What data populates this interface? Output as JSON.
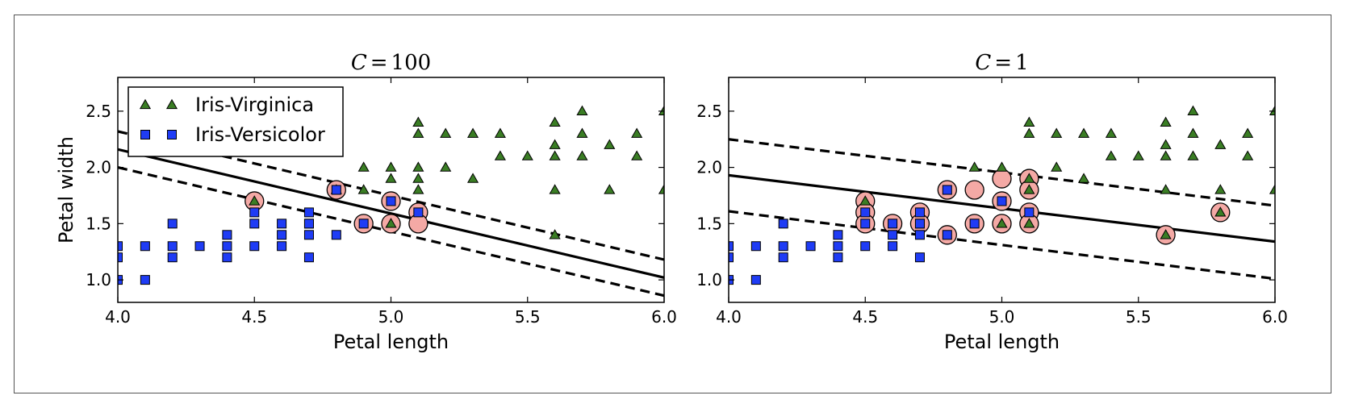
{
  "colors": {
    "virginica": "#3a7d24",
    "versicolor": "#1f3cf5",
    "support_vector": "#f4a9a5",
    "line": "#000000"
  },
  "chart_data": [
    {
      "type": "scatter",
      "title": "C = 100",
      "title_parts": {
        "var": "C",
        "eq": "=",
        "num": "100"
      },
      "xlabel": "Petal length",
      "ylabel": "Petal width",
      "xlim": [
        4.0,
        6.0
      ],
      "ylim": [
        0.8,
        2.8
      ],
      "xticks": [
        "4.0",
        "4.5",
        "5.0",
        "5.5",
        "6.0"
      ],
      "yticks": [
        "1.0",
        "1.5",
        "2.0",
        "2.5"
      ],
      "legend": {
        "position": "upper-left",
        "entries": [
          "Iris-Virginica",
          "Iris-Versicolor"
        ]
      },
      "series": [
        {
          "name": "Iris-Virginica",
          "marker": "triangle",
          "x": [
            4.5,
            4.8,
            4.9,
            4.9,
            5.0,
            5.0,
            5.0,
            5.1,
            5.1,
            5.1,
            5.1,
            5.1,
            5.2,
            5.2,
            5.3,
            5.3,
            5.4,
            5.4,
            5.5,
            5.6,
            5.6,
            5.6,
            5.6,
            5.6,
            5.7,
            5.7,
            5.7,
            5.8,
            5.8,
            5.9,
            5.9,
            6.0,
            6.0
          ],
          "y": [
            1.7,
            1.8,
            2.0,
            1.8,
            2.0,
            1.9,
            1.5,
            2.4,
            2.3,
            2.0,
            1.9,
            1.8,
            2.3,
            2.0,
            2.3,
            1.9,
            2.3,
            2.1,
            2.1,
            2.4,
            2.2,
            2.1,
            1.8,
            1.4,
            2.5,
            2.3,
            2.1,
            2.2,
            1.8,
            2.3,
            2.1,
            2.5,
            1.8
          ]
        },
        {
          "name": "Iris-Versicolor",
          "marker": "square",
          "x": [
            4.0,
            4.0,
            4.0,
            4.1,
            4.1,
            4.2,
            4.2,
            4.2,
            4.3,
            4.4,
            4.4,
            4.4,
            4.5,
            4.5,
            4.5,
            4.6,
            4.6,
            4.6,
            4.7,
            4.7,
            4.7,
            4.7,
            4.7,
            4.8,
            4.8,
            4.9,
            5.0,
            5.1
          ],
          "y": [
            1.3,
            1.2,
            1.0,
            1.3,
            1.0,
            1.5,
            1.3,
            1.2,
            1.3,
            1.4,
            1.3,
            1.2,
            1.6,
            1.5,
            1.3,
            1.5,
            1.4,
            1.3,
            1.6,
            1.5,
            1.4,
            1.2,
            1.5,
            1.8,
            1.4,
            1.5,
            1.7,
            1.6
          ]
        }
      ],
      "support_vectors": {
        "x": [
          4.5,
          4.8,
          4.9,
          5.0,
          5.0,
          5.1,
          5.1
        ],
        "y": [
          1.7,
          1.8,
          1.5,
          1.7,
          1.5,
          1.6,
          1.5
        ]
      },
      "lines": [
        {
          "style": "solid",
          "x": [
            4.0,
            6.0
          ],
          "y": [
            2.16,
            1.02
          ]
        },
        {
          "style": "dashed",
          "x": [
            4.0,
            6.0
          ],
          "y": [
            2.32,
            1.18
          ]
        },
        {
          "style": "dashed",
          "x": [
            4.0,
            6.0
          ],
          "y": [
            2.0,
            0.86
          ]
        }
      ],
      "grid": false
    },
    {
      "type": "scatter",
      "title": "C = 1",
      "title_parts": {
        "var": "C",
        "eq": "=",
        "num": "1"
      },
      "xlabel": "Petal length",
      "ylabel": "",
      "xlim": [
        4.0,
        6.0
      ],
      "ylim": [
        0.8,
        2.8
      ],
      "xticks": [
        "4.0",
        "4.5",
        "5.0",
        "5.5",
        "6.0"
      ],
      "yticks": [
        "1.0",
        "1.5",
        "2.0",
        "2.5"
      ],
      "series": [
        {
          "name": "Iris-Virginica",
          "marker": "triangle",
          "x": [
            4.5,
            4.9,
            5.0,
            5.0,
            5.1,
            5.1,
            5.1,
            5.1,
            5.1,
            5.2,
            5.2,
            5.3,
            5.3,
            5.4,
            5.4,
            5.5,
            5.6,
            5.6,
            5.6,
            5.6,
            5.6,
            5.7,
            5.7,
            5.7,
            5.8,
            5.8,
            5.8,
            5.9,
            5.9,
            6.0,
            6.0
          ],
          "y": [
            1.7,
            2.0,
            2.0,
            1.5,
            2.4,
            2.3,
            1.9,
            1.8,
            1.5,
            2.3,
            2.0,
            2.3,
            1.9,
            2.3,
            2.1,
            2.1,
            2.4,
            2.2,
            2.1,
            1.8,
            1.4,
            2.5,
            2.3,
            2.1,
            2.2,
            1.8,
            1.6,
            2.3,
            2.1,
            2.5,
            1.8
          ]
        },
        {
          "name": "Iris-Versicolor",
          "marker": "square",
          "x": [
            4.0,
            4.0,
            4.0,
            4.1,
            4.1,
            4.2,
            4.2,
            4.2,
            4.3,
            4.4,
            4.4,
            4.4,
            4.5,
            4.5,
            4.5,
            4.6,
            4.6,
            4.6,
            4.7,
            4.7,
            4.7,
            4.7,
            4.7,
            4.8,
            4.8,
            4.9,
            5.0,
            5.1
          ],
          "y": [
            1.3,
            1.2,
            1.0,
            1.3,
            1.0,
            1.5,
            1.3,
            1.2,
            1.3,
            1.4,
            1.3,
            1.2,
            1.6,
            1.5,
            1.3,
            1.5,
            1.4,
            1.3,
            1.6,
            1.5,
            1.4,
            1.2,
            1.5,
            1.8,
            1.4,
            1.5,
            1.7,
            1.6
          ]
        }
      ],
      "support_vectors": {
        "x": [
          4.5,
          4.5,
          4.5,
          4.6,
          4.7,
          4.7,
          4.8,
          4.8,
          4.9,
          4.9,
          5.0,
          5.0,
          5.0,
          5.1,
          5.1,
          5.1,
          5.1,
          5.6,
          5.8
        ],
        "y": [
          1.7,
          1.6,
          1.5,
          1.5,
          1.6,
          1.5,
          1.8,
          1.4,
          1.8,
          1.5,
          1.9,
          1.7,
          1.5,
          1.9,
          1.8,
          1.6,
          1.5,
          1.4,
          1.6
        ]
      },
      "lines": [
        {
          "style": "solid",
          "x": [
            4.0,
            6.0
          ],
          "y": [
            1.93,
            1.34
          ]
        },
        {
          "style": "dashed",
          "x": [
            4.0,
            6.0
          ],
          "y": [
            2.25,
            1.66
          ]
        },
        {
          "style": "dashed",
          "x": [
            4.0,
            6.0
          ],
          "y": [
            1.61,
            1.01
          ]
        }
      ],
      "grid": false
    }
  ]
}
